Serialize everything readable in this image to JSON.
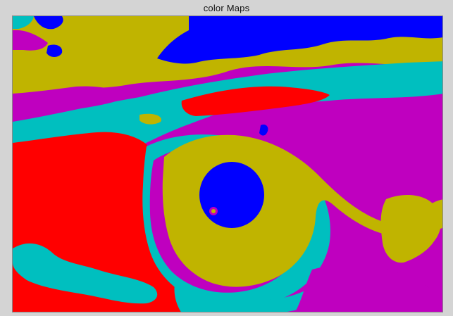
{
  "window": {
    "title": "color Maps"
  },
  "image": {
    "description_icon": "color-map-image",
    "palette": {
      "blue": "#0000ff",
      "yellow": "#c0b400",
      "magenta": "#bf00bf",
      "cyan": "#00bfbf",
      "red": "#ff0000",
      "background": "#d4d4d4"
    }
  }
}
